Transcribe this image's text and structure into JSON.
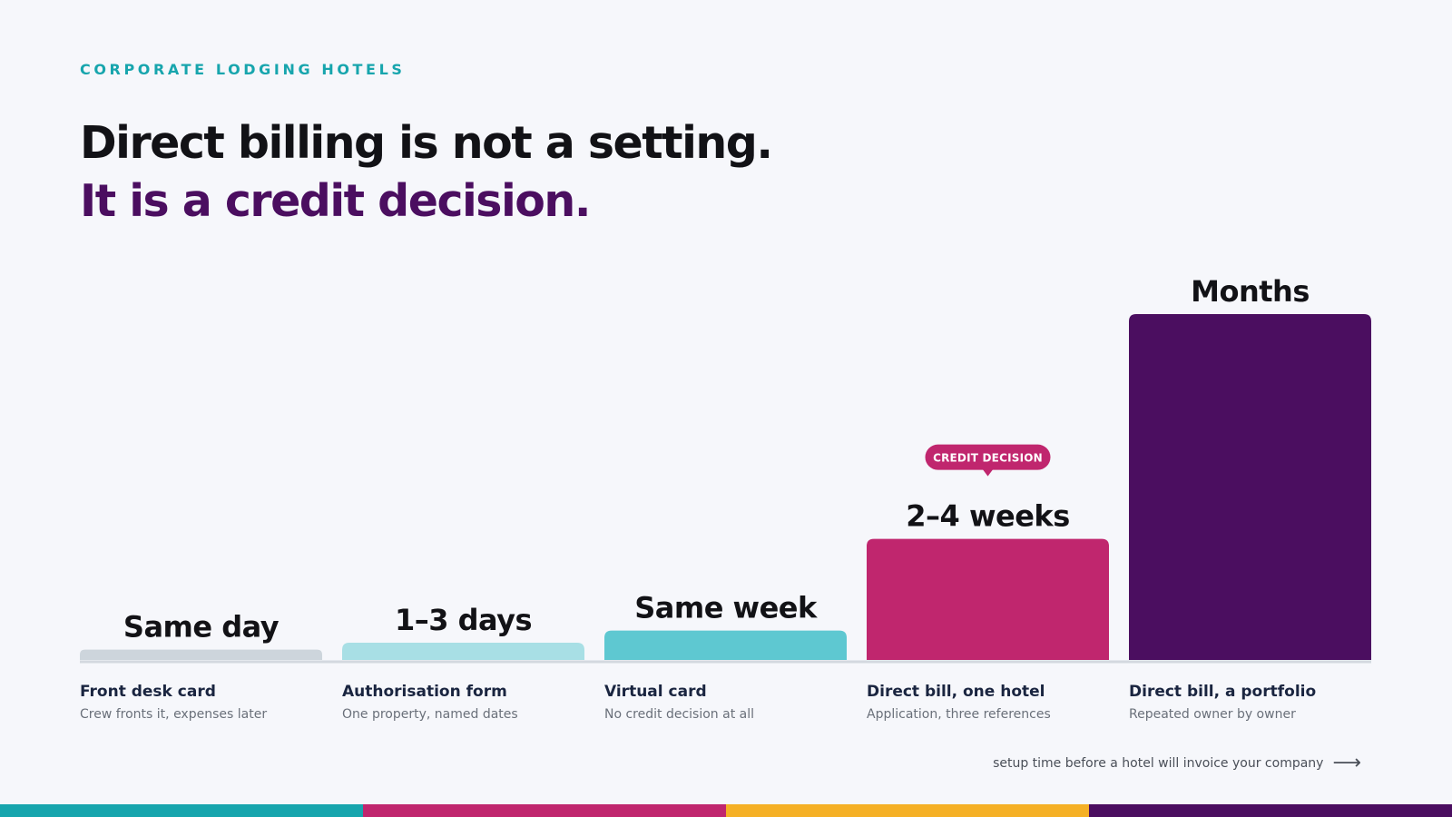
{
  "header": {
    "eyebrow": "CORPORATE LODGING HOTELS",
    "title_line1": "Direct billing is not a setting.",
    "title_line2": "It is a credit decision."
  },
  "footnote": {
    "text": "setup time before a hotel will invoice your company",
    "arrow_icon": "right-arrow-icon"
  },
  "colors": {
    "teal": "#17a5ad",
    "magenta": "#c0266e",
    "amber": "#f5b025",
    "purple": "#4b0e60",
    "gray_bar": "#cdd5dc",
    "light_teal": "#a8dfe5",
    "mid_teal": "#5ec8d1"
  },
  "chart_data": {
    "type": "bar",
    "categories": [
      "Front desk card",
      "Authorisation form",
      "Virtual card",
      "Direct bill, one hotel",
      "Direct bill, a portfolio"
    ],
    "descriptions": [
      "Crew fronts it, expenses later",
      "One property, named dates",
      "No credit decision at all",
      "Application, three references",
      "Repeated owner by owner"
    ],
    "data_labels": [
      "Same day",
      "1–3 days",
      "Same week",
      "2–4 weeks",
      "Months"
    ],
    "values": [
      0.03,
      0.05,
      0.085,
      0.35,
      1.0
    ],
    "bar_colors": [
      "#cdd5dc",
      "#a8dfe5",
      "#5ec8d1",
      "#c0266e",
      "#4b0e60"
    ],
    "annotation": {
      "text": "CREDIT DECISION",
      "category_index": 3,
      "color": "#c0266e"
    },
    "ylim": [
      0,
      1
    ],
    "grid": false
  },
  "stripe_colors": [
    "#17a5ad",
    "#c0266e",
    "#f5b025",
    "#4b0e60"
  ]
}
